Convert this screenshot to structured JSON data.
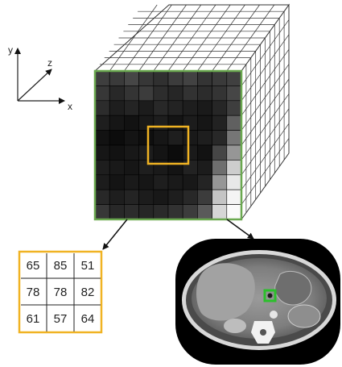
{
  "axes": {
    "x": "x",
    "y": "y",
    "z": "z"
  },
  "colors": {
    "volume_border": "#6aa84f",
    "kernel_highlight": "#f0b323",
    "ct_marker": "#2bc02b",
    "volume_lines": "#333333",
    "arrow": "#111111"
  },
  "slice_grid": {
    "rows": 10,
    "cols": 10,
    "intensities": [
      [
        62,
        58,
        70,
        55,
        48,
        60,
        66,
        52,
        58,
        64
      ],
      [
        55,
        40,
        52,
        60,
        45,
        38,
        50,
        44,
        52,
        70
      ],
      [
        44,
        30,
        36,
        28,
        40,
        35,
        30,
        26,
        38,
        62
      ],
      [
        30,
        22,
        18,
        25,
        30,
        20,
        28,
        22,
        34,
        96
      ],
      [
        18,
        12,
        20,
        15,
        22,
        30,
        25,
        30,
        40,
        118
      ],
      [
        22,
        18,
        24,
        28,
        20,
        12,
        26,
        18,
        70,
        150
      ],
      [
        30,
        25,
        22,
        30,
        26,
        20,
        34,
        28,
        110,
        205
      ],
      [
        28,
        20,
        26,
        22,
        30,
        26,
        24,
        36,
        150,
        232
      ],
      [
        40,
        30,
        36,
        28,
        24,
        30,
        40,
        60,
        196,
        244
      ],
      [
        55,
        40,
        44,
        38,
        42,
        50,
        60,
        90,
        214,
        250
      ]
    ]
  },
  "kernel_matrix": [
    [
      "65",
      "85",
      "51"
    ],
    [
      "78",
      "78",
      "82"
    ],
    [
      "61",
      "57",
      "64"
    ]
  ],
  "icons": {
    "axes": "coordinate-axes-icon",
    "volume": "3d-image-volume",
    "ct": "axial-ct-slice"
  }
}
